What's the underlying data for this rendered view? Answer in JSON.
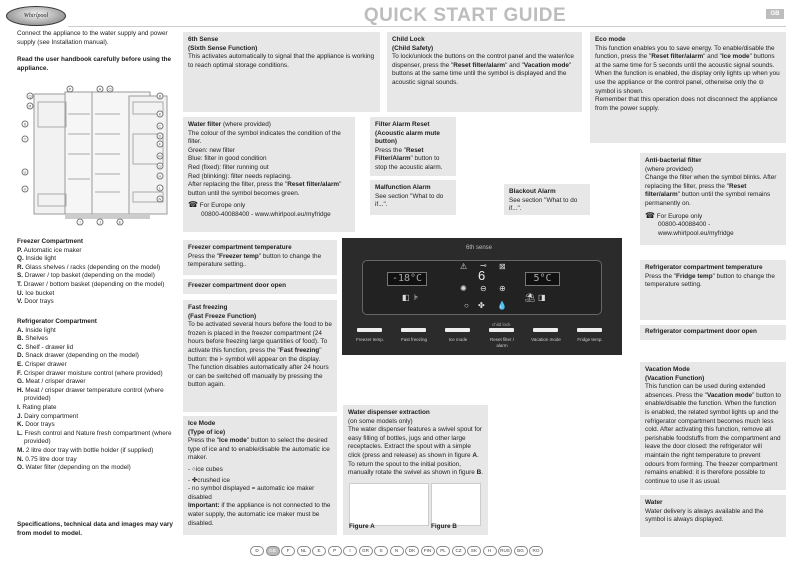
{
  "header": {
    "logo": "Whirlpool",
    "title": "QUICK START GUIDE",
    "lang_badge": "GB"
  },
  "intro": {
    "connect": "Connect the appliance to the water supply and power supply (see Installation manual).",
    "read": "Read the user handbook carefully before using the appliance."
  },
  "diagram_labels": [
    "P",
    "A",
    "O",
    "Q",
    "B",
    "R",
    "K",
    "S",
    "C",
    "T",
    "D",
    "F",
    "M",
    "U",
    "G",
    "H",
    "V",
    "L",
    "I",
    "J",
    "E",
    "N"
  ],
  "freezer": {
    "title": "Freezer Compartment",
    "items": [
      {
        "k": "P.",
        "t": "Automatic ice maker"
      },
      {
        "k": "Q.",
        "t": "Inside light"
      },
      {
        "k": "R.",
        "t": "Glass shelves / racks (depending on the model)"
      },
      {
        "k": "S.",
        "t": "Drawer / top basket (depending on the model)"
      },
      {
        "k": "T.",
        "t": "Drawer / bottom basket (depending on the model)"
      },
      {
        "k": "U.",
        "t": "Ice bucket"
      },
      {
        "k": "V.",
        "t": "Door trays"
      }
    ]
  },
  "fridge": {
    "title": "Refrigerator Compartment",
    "items": [
      {
        "k": "A.",
        "t": "Inside light"
      },
      {
        "k": "B.",
        "t": "Shelves"
      },
      {
        "k": "C.",
        "t": "Shelf - drawer lid"
      },
      {
        "k": "D.",
        "t": "Snack drawer (depending on the model)"
      },
      {
        "k": "E.",
        "t": "Crisper drawer"
      },
      {
        "k": "F.",
        "t": "Crisper drawer moisture control (where provided)"
      },
      {
        "k": "G.",
        "t": "Meat / crisper drawer"
      },
      {
        "k": "H.",
        "t": "Meat / crisper drawer temperature control (where provided)"
      },
      {
        "k": "I.",
        "t": "Rating plate"
      },
      {
        "k": "J.",
        "t": "Dairy compartment"
      },
      {
        "k": "K.",
        "t": "Door trays"
      },
      {
        "k": "L.",
        "t": "Fresh control and Nature fresh compartment (where provided)"
      },
      {
        "k": "M.",
        "t": "2 litre door tray with bottle holder (if supplied)"
      },
      {
        "k": "N.",
        "t": "0.75 litre door tray"
      },
      {
        "k": "O.",
        "t": "Water filter (depending on the model)"
      }
    ]
  },
  "specs": "Specifications, technical data and images may vary from model to model.",
  "sixth": {
    "t1": "6th Sense",
    "t2": "(Sixth Sense Function)",
    "body": "This activates automatically to signal that the appliance is working to reach optimal storage conditions."
  },
  "child": {
    "t1": "Child Lock",
    "t2": "(Child Safety)",
    "a": "To lock/unlock the buttons on the control panel and the water/ice dispenser, press the \"",
    "b1": "Reset filter/alarm",
    "c": "\" and \"",
    "b2": "Vacation mode",
    "d": "\" buttons at the same time until the symbol is displayed and the acoustic signal sounds."
  },
  "eco": {
    "t": "Eco mode",
    "a": "This function enables you to save energy. To enable/disable the function, press the \"",
    "b1": "Reset filter/alarm",
    "c": "\" and \"",
    "b2": "Ice mode",
    "d": "\" buttons at the same time for 5 seconds until the acoustic signal sounds. When the function is enabled, the display only lights up when you use the appliance or the control panel, otherwise only the",
    "e": "symbol is shown.",
    "f": "Remember that this operation does not disconnect the appliance from the power supply."
  },
  "water_filter": {
    "t": "Water filter",
    "sub": "(where provided)",
    "lines": [
      "The colour of the symbol indicates the condition of the filter.",
      "Green: new filter",
      "Blue: filter in good condition",
      "Red (fixed): filter running out",
      "Red (blinking): filter needs replacing."
    ],
    "a": "After replacing the filter, press the \"",
    "b": "Reset filter/alarm",
    "c": "\" button until the symbol becomes green.",
    "europe": "For Europe only",
    "phone": "00800-40088400 - www.whirlpool.eu/myfridge"
  },
  "filter_reset": {
    "t": "Filter Alarm Reset (Acoustic alarm mute button)",
    "a": "Press the \"",
    "b": "Reset Filter/Alarm",
    "c": "\" button to stop the acoustic alarm."
  },
  "malfunction": {
    "t": "Malfunction Alarm",
    "body": "See section \"What to do if...\"."
  },
  "blackout": {
    "t": "Blackout Alarm",
    "body": "See section \"What to do if...\"."
  },
  "antibac": {
    "t": "Anti-bacterial filter",
    "sub": "(where provided)",
    "a": "Change the filter when the symbol blinks. After replacing the filter, press the \"",
    "b": "Reset filter/alarm",
    "c": "\" button until the symbol remains permanently on.",
    "europe": "For Europe only",
    "phone": "00800-40088400 - www.whirlpool.eu/myfridge"
  },
  "freezer_temp": {
    "t": "Freezer compartment temperature",
    "a": "Press the \"",
    "b": "Freezer temp",
    "c": "\" button to change the temperature setting.."
  },
  "freezer_door": {
    "t": "Freezer compartment door open"
  },
  "fridge_temp": {
    "t": "Refrigerator compartment temperature",
    "a": "Press the \"",
    "b": "Fridge temp",
    "c": "\" button to change the temperature setting."
  },
  "fridge_door": {
    "t": "Refrigerator compartment door open"
  },
  "fast": {
    "t1": "Fast freezing",
    "t2": "(Fast Freeze Function)",
    "a": "To be activated several hours before the food to be frozen is placed in the freezer compartment (24 hours before freezing large quantities of food). To activate this function, press the \"",
    "b": "Fast freezing",
    "c": "\" button: the",
    "d": "symbol will appear on the display. The function disables automatically after 24 hours or can be switched off manually by pressing the button again."
  },
  "ice": {
    "t1": "Ice Mode",
    "t2": "(Type of ice)",
    "a": "Press the \"",
    "b": "Ice mode",
    "c": "\" button to select the desired type of ice and to enable/disable the automatic ice maker.",
    "cubes": "ice cubes",
    "crushed": "crushed ice",
    "none": "- no symbol displayed = automatic ice maker disabled",
    "imp": "Important:",
    "imp_text": " if the appliance is not connected to the water supply, the automatic ice maker must be disabled."
  },
  "dispenser": {
    "t": "Water dispenser extraction",
    "sub": "(on some models only)",
    "a": "The water dispenser features a swivel spout for easy filling of bottles, jugs and other large receptacles. Extract the spout with a simple click (press and release) as shown in figure ",
    "b1": "A",
    "c": ". To return the spout to the initial position, manually rotate the swivel as shown in figure ",
    "b2": "B",
    "d": ".",
    "figA": "Figure A",
    "figB": "Figure B"
  },
  "vacation": {
    "t1": "Vacation Mode",
    "t2": "(Vacation Function)",
    "a": "This function can be used during extended absences. Press the \"",
    "b": "Vacation mode",
    "c": "\" button to enable/disable the function. When the function is enabled, the related symbol lights up and the refrigerator compartment becomes much less cold. After activating this function, remove all perishable foodstuffs from the compartment and leave the door closed: the refrigerator will maintain the right temperature to prevent odours from forming. The freezer compartment remains enabled: it is therefore possible to continue to use it as usual."
  },
  "water": {
    "t": "Water",
    "body": "Water delivery is always available and the symbol is always displayed."
  },
  "panel": {
    "brand": "6th sense",
    "freezer_display": "-18°C",
    "fridge_display": "5°C",
    "sixth_digit": "6",
    "child_lock": "child lock",
    "buttons": [
      "Freezer temp.",
      "Fast freezing",
      "Ice mode",
      "Reset filter / alarm",
      "Vacation mode",
      "Fridge temp."
    ]
  },
  "languages": [
    "D",
    "GB",
    "F",
    "NL",
    "E",
    "P",
    "I",
    "GR",
    "S",
    "N",
    "DK",
    "FIN",
    "PL",
    "CZ",
    "SK",
    "H",
    "RUS",
    "BG",
    "RO"
  ],
  "active_language": "GB"
}
